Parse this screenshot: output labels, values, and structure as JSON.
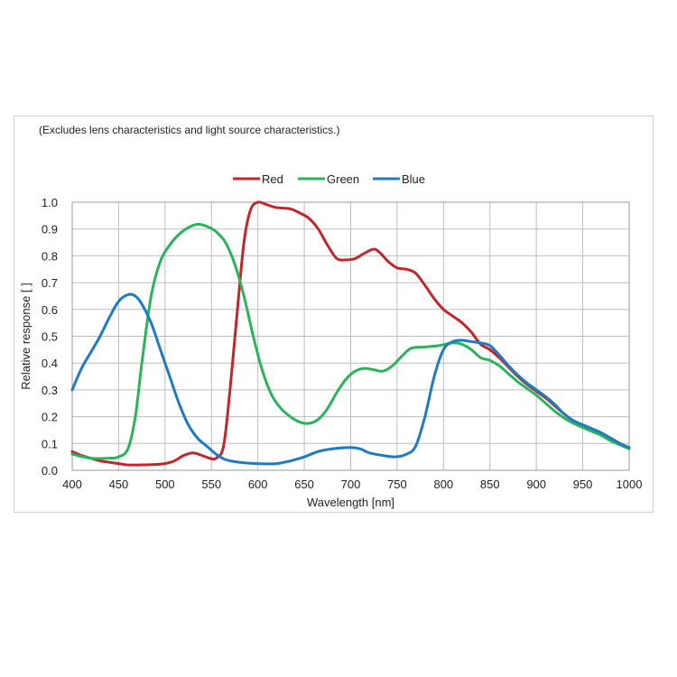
{
  "note": "(Excludes lens characteristics and light source characteristics.)",
  "chart_data": {
    "type": "line",
    "xlabel": "Wavelength [nm]",
    "ylabel": "Relative response [ ]",
    "xlim": [
      400,
      1000
    ],
    "ylim": [
      0,
      1.0
    ],
    "x_ticks": [
      "400",
      "450",
      "500",
      "550",
      "600",
      "650",
      "700",
      "750",
      "800",
      "850",
      "900",
      "950",
      "1000"
    ],
    "y_ticks": [
      "0.0",
      "0.1",
      "0.2",
      "0.3",
      "0.4",
      "0.5",
      "0.6",
      "0.7",
      "0.8",
      "0.9",
      "1.0"
    ],
    "grid": true,
    "legend_position": "top",
    "series": [
      {
        "name": "Red",
        "color": "#c0272d",
        "points": [
          [
            400,
            0.07
          ],
          [
            410,
            0.055
          ],
          [
            420,
            0.045
          ],
          [
            430,
            0.035
          ],
          [
            440,
            0.03
          ],
          [
            450,
            0.025
          ],
          [
            460,
            0.02
          ],
          [
            475,
            0.02
          ],
          [
            490,
            0.022
          ],
          [
            500,
            0.025
          ],
          [
            510,
            0.035
          ],
          [
            520,
            0.055
          ],
          [
            530,
            0.065
          ],
          [
            540,
            0.055
          ],
          [
            548,
            0.045
          ],
          [
            555,
            0.045
          ],
          [
            563,
            0.09
          ],
          [
            570,
            0.3
          ],
          [
            578,
            0.6
          ],
          [
            585,
            0.85
          ],
          [
            592,
            0.97
          ],
          [
            600,
            1.0
          ],
          [
            610,
            0.99
          ],
          [
            620,
            0.98
          ],
          [
            635,
            0.975
          ],
          [
            645,
            0.96
          ],
          [
            655,
            0.94
          ],
          [
            665,
            0.9
          ],
          [
            675,
            0.84
          ],
          [
            685,
            0.79
          ],
          [
            695,
            0.785
          ],
          [
            705,
            0.79
          ],
          [
            715,
            0.81
          ],
          [
            725,
            0.825
          ],
          [
            732,
            0.81
          ],
          [
            740,
            0.78
          ],
          [
            750,
            0.755
          ],
          [
            760,
            0.75
          ],
          [
            770,
            0.735
          ],
          [
            780,
            0.69
          ],
          [
            790,
            0.64
          ],
          [
            800,
            0.6
          ],
          [
            810,
            0.575
          ],
          [
            820,
            0.55
          ],
          [
            830,
            0.515
          ],
          [
            840,
            0.47
          ],
          [
            850,
            0.45
          ],
          [
            860,
            0.42
          ],
          [
            870,
            0.385
          ],
          [
            880,
            0.35
          ],
          [
            890,
            0.32
          ],
          [
            900,
            0.295
          ],
          [
            910,
            0.27
          ],
          [
            920,
            0.24
          ],
          [
            930,
            0.21
          ],
          [
            940,
            0.185
          ],
          [
            950,
            0.165
          ],
          [
            960,
            0.15
          ],
          [
            970,
            0.135
          ],
          [
            980,
            0.12
          ],
          [
            990,
            0.1
          ],
          [
            1000,
            0.08
          ]
        ]
      },
      {
        "name": "Green",
        "color": "#2bb35c",
        "points": [
          [
            400,
            0.06
          ],
          [
            420,
            0.045
          ],
          [
            440,
            0.045
          ],
          [
            450,
            0.05
          ],
          [
            460,
            0.08
          ],
          [
            468,
            0.2
          ],
          [
            475,
            0.4
          ],
          [
            485,
            0.65
          ],
          [
            495,
            0.78
          ],
          [
            505,
            0.84
          ],
          [
            515,
            0.88
          ],
          [
            525,
            0.905
          ],
          [
            535,
            0.918
          ],
          [
            545,
            0.91
          ],
          [
            555,
            0.89
          ],
          [
            565,
            0.85
          ],
          [
            575,
            0.77
          ],
          [
            585,
            0.65
          ],
          [
            595,
            0.5
          ],
          [
            605,
            0.37
          ],
          [
            615,
            0.28
          ],
          [
            625,
            0.23
          ],
          [
            635,
            0.2
          ],
          [
            645,
            0.18
          ],
          [
            655,
            0.175
          ],
          [
            665,
            0.19
          ],
          [
            675,
            0.23
          ],
          [
            685,
            0.29
          ],
          [
            695,
            0.34
          ],
          [
            705,
            0.37
          ],
          [
            715,
            0.38
          ],
          [
            725,
            0.375
          ],
          [
            735,
            0.37
          ],
          [
            745,
            0.39
          ],
          [
            755,
            0.425
          ],
          [
            765,
            0.455
          ],
          [
            780,
            0.46
          ],
          [
            795,
            0.465
          ],
          [
            810,
            0.475
          ],
          [
            820,
            0.47
          ],
          [
            830,
            0.45
          ],
          [
            840,
            0.42
          ],
          [
            850,
            0.41
          ],
          [
            860,
            0.39
          ],
          [
            870,
            0.36
          ],
          [
            880,
            0.33
          ],
          [
            890,
            0.305
          ],
          [
            900,
            0.28
          ],
          [
            910,
            0.25
          ],
          [
            920,
            0.22
          ],
          [
            930,
            0.195
          ],
          [
            940,
            0.175
          ],
          [
            950,
            0.16
          ],
          [
            960,
            0.145
          ],
          [
            970,
            0.13
          ],
          [
            980,
            0.11
          ],
          [
            990,
            0.095
          ],
          [
            1000,
            0.08
          ]
        ]
      },
      {
        "name": "Blue",
        "color": "#1f7ac2",
        "points": [
          [
            400,
            0.3
          ],
          [
            410,
            0.38
          ],
          [
            420,
            0.44
          ],
          [
            430,
            0.5
          ],
          [
            440,
            0.57
          ],
          [
            450,
            0.63
          ],
          [
            460,
            0.655
          ],
          [
            468,
            0.65
          ],
          [
            475,
            0.62
          ],
          [
            485,
            0.55
          ],
          [
            495,
            0.45
          ],
          [
            505,
            0.35
          ],
          [
            515,
            0.25
          ],
          [
            525,
            0.17
          ],
          [
            535,
            0.12
          ],
          [
            545,
            0.09
          ],
          [
            555,
            0.06
          ],
          [
            565,
            0.04
          ],
          [
            580,
            0.03
          ],
          [
            600,
            0.025
          ],
          [
            620,
            0.025
          ],
          [
            635,
            0.035
          ],
          [
            650,
            0.05
          ],
          [
            665,
            0.07
          ],
          [
            680,
            0.08
          ],
          [
            700,
            0.085
          ],
          [
            710,
            0.08
          ],
          [
            720,
            0.065
          ],
          [
            735,
            0.055
          ],
          [
            748,
            0.05
          ],
          [
            760,
            0.06
          ],
          [
            770,
            0.09
          ],
          [
            780,
            0.2
          ],
          [
            790,
            0.35
          ],
          [
            800,
            0.45
          ],
          [
            810,
            0.48
          ],
          [
            820,
            0.485
          ],
          [
            830,
            0.48
          ],
          [
            840,
            0.475
          ],
          [
            850,
            0.465
          ],
          [
            860,
            0.43
          ],
          [
            870,
            0.39
          ],
          [
            880,
            0.355
          ],
          [
            890,
            0.325
          ],
          [
            900,
            0.3
          ],
          [
            910,
            0.275
          ],
          [
            920,
            0.245
          ],
          [
            930,
            0.21
          ],
          [
            940,
            0.185
          ],
          [
            950,
            0.17
          ],
          [
            960,
            0.155
          ],
          [
            970,
            0.14
          ],
          [
            980,
            0.12
          ],
          [
            990,
            0.1
          ],
          [
            1000,
            0.085
          ]
        ]
      }
    ]
  }
}
